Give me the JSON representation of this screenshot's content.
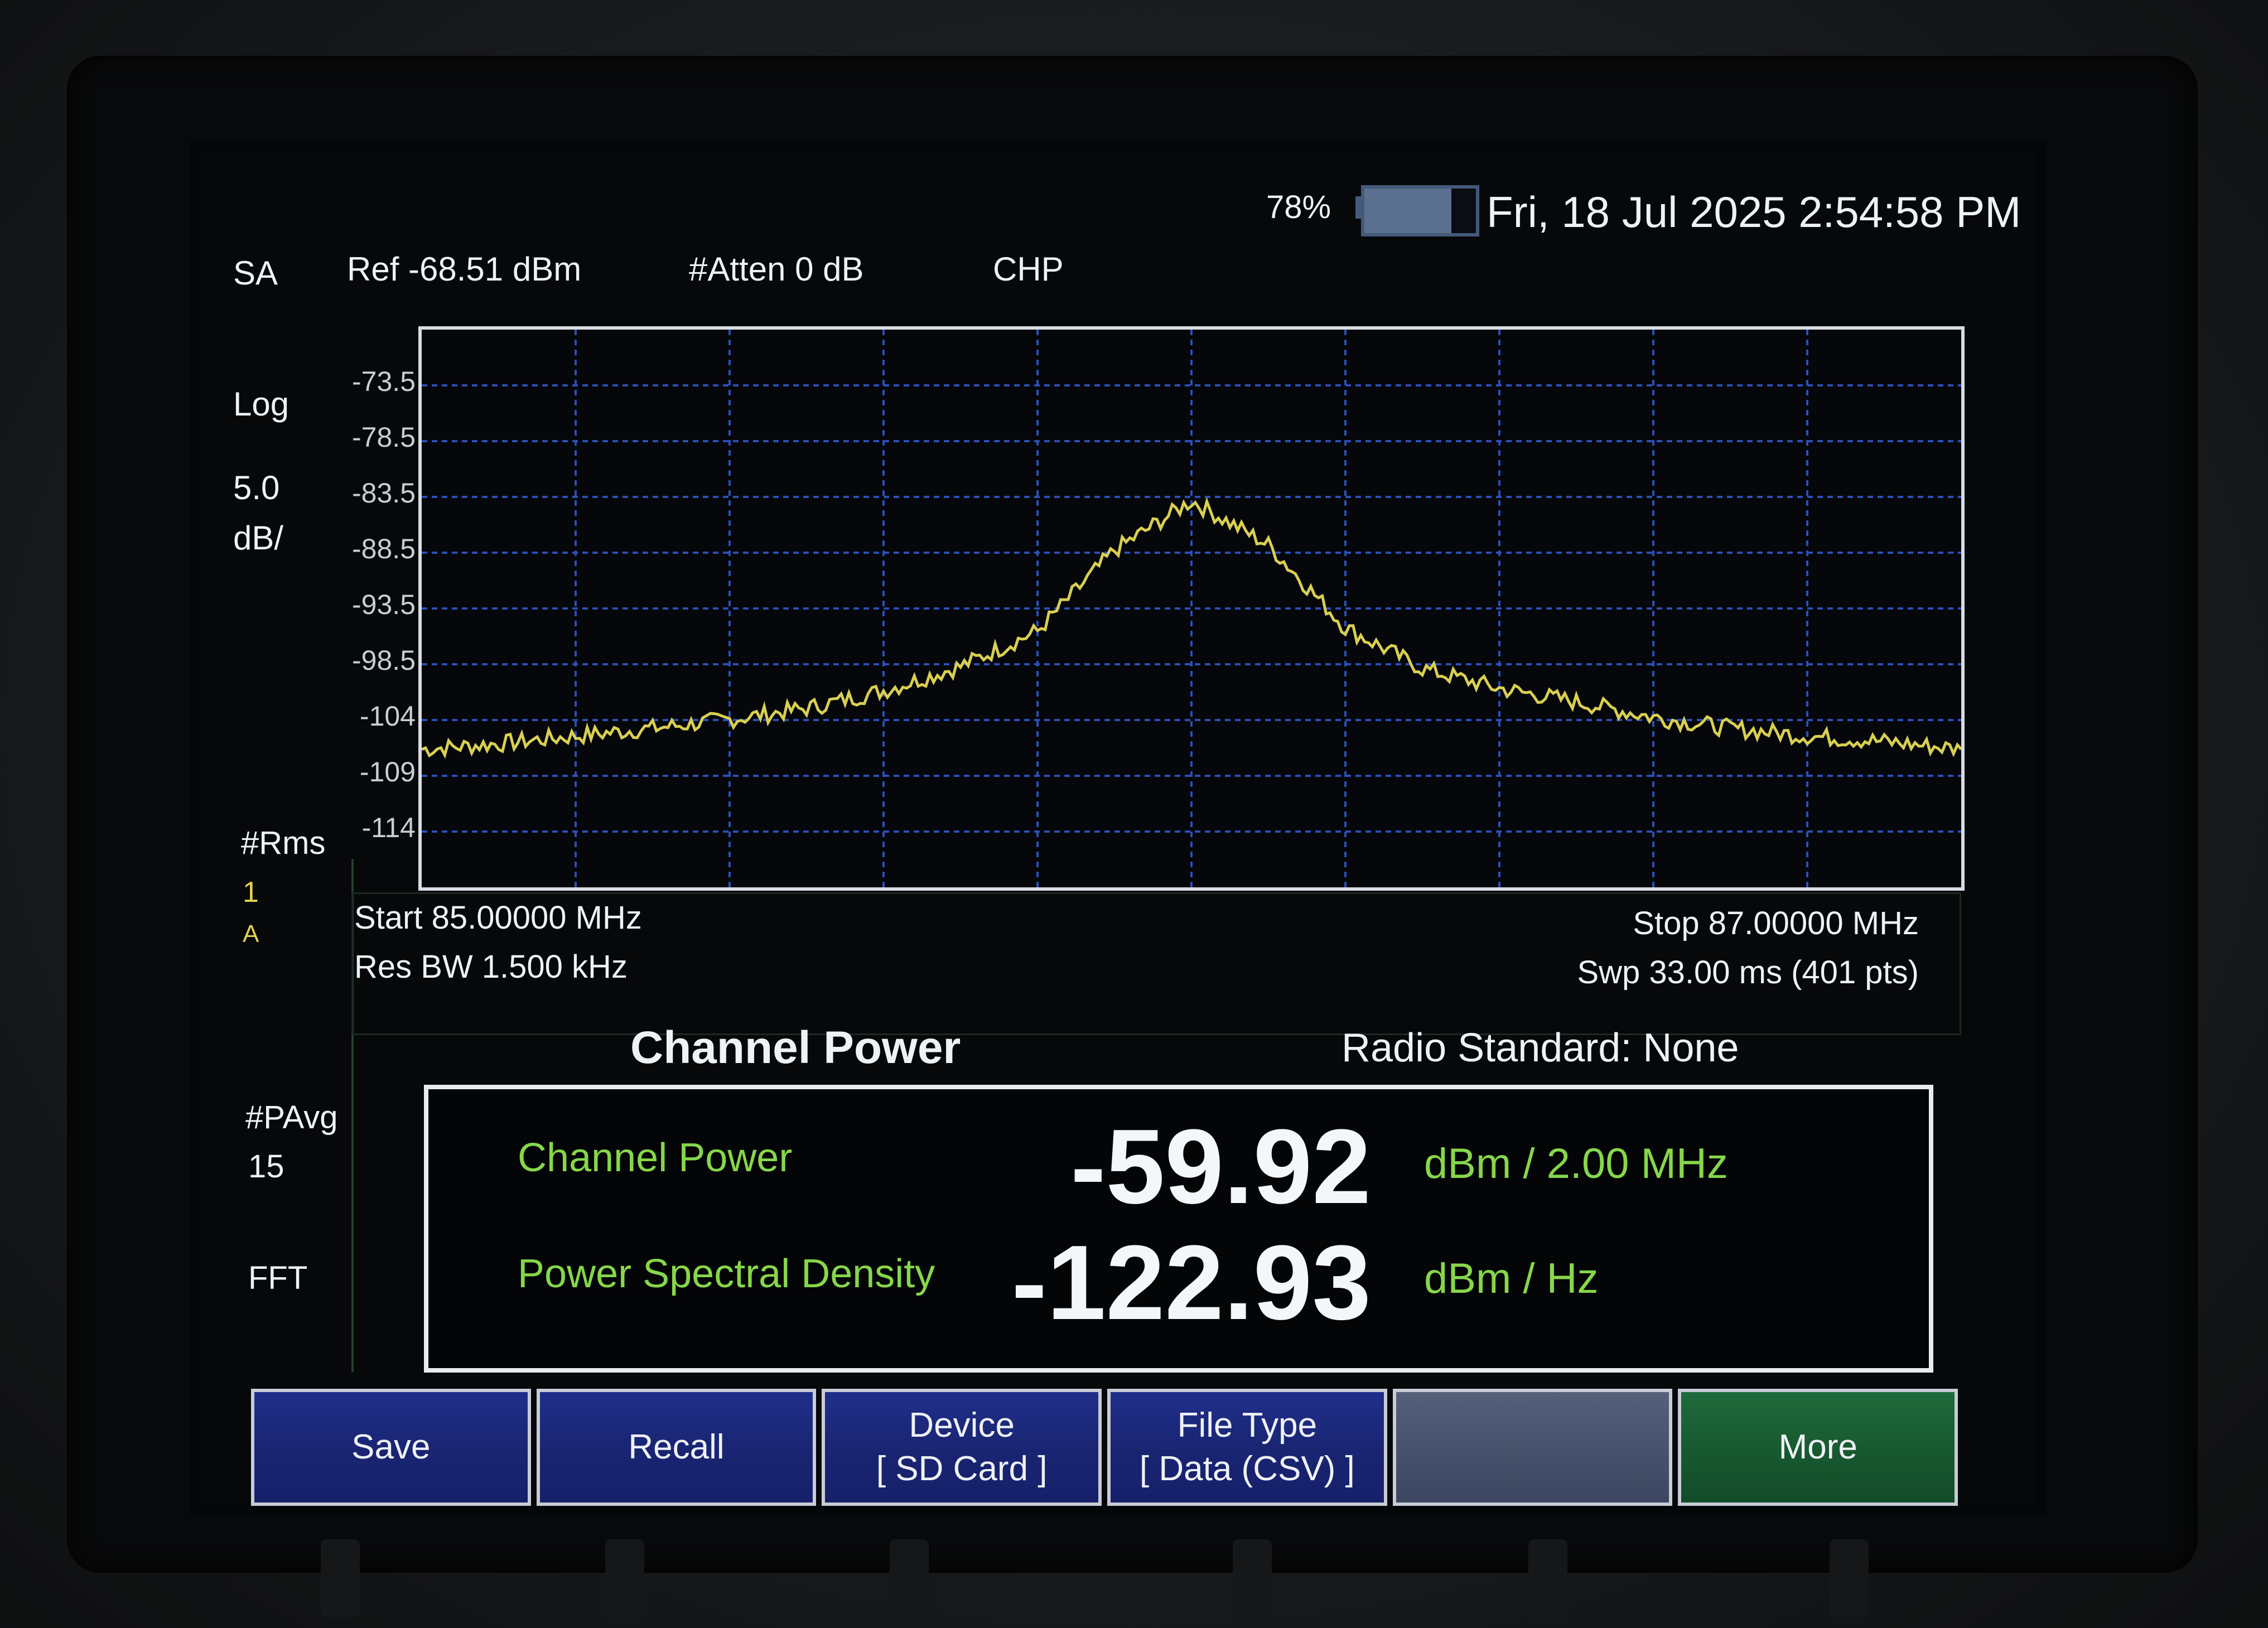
{
  "status": {
    "battery": "78%",
    "battery_level": 0.78,
    "datetime": "Fri, 18 Jul 2025 2:54:58 PM"
  },
  "header": {
    "mode": "SA",
    "ref": "Ref -68.51 dBm",
    "atten": "#Atten 0 dB",
    "measurement": "CHP"
  },
  "left_panel": {
    "scale_type": "Log",
    "scale_value": "5.0",
    "scale_unit": "dB/",
    "detector": "#Rms",
    "trace_num": "1",
    "trace_mode": "A",
    "avg": "#PAvg",
    "avg_count": "15",
    "sweep_type": "FFT"
  },
  "chart_data": {
    "type": "line",
    "ylabels": [
      "-73.5",
      "-78.5",
      "-83.5",
      "-88.5",
      "-93.5",
      "-98.5",
      "-104",
      "-109",
      "-114"
    ],
    "ylim": [
      -119,
      -68.51
    ],
    "xlim": [
      85.0,
      87.0
    ],
    "grid": true,
    "series": [
      {
        "color": "#d9cf52",
        "x": [
          85.0,
          85.1,
          85.2,
          85.3,
          85.4,
          85.5,
          85.6,
          85.7,
          85.8,
          85.9,
          86.0,
          86.1,
          86.2,
          86.3,
          86.4,
          86.5,
          86.6,
          86.7,
          86.8,
          86.9,
          87.0
        ],
        "y": [
          -106.5,
          -106.0,
          -105.3,
          -104.6,
          -103.8,
          -102.8,
          -101.2,
          -99.0,
          -95.8,
          -88.5,
          -84.0,
          -88.0,
          -95.5,
          -99.2,
          -101.0,
          -102.2,
          -103.6,
          -104.6,
          -105.3,
          -105.8,
          -106.5
        ]
      }
    ]
  },
  "freq": {
    "start": "Start 85.00000 MHz",
    "stop": "Stop 87.00000 MHz",
    "rbw": "Res BW 1.500 kHz",
    "sweep": "Swp 33.00 ms (401 pts)"
  },
  "result": {
    "title": "Channel Power",
    "radio_standard": "Radio Standard: None",
    "channel_power_label": "Channel Power",
    "channel_power_value": "-59.92",
    "channel_power_unit": "dBm / 2.00 MHz",
    "psd_label": "Power Spectral Density",
    "psd_value": "-122.93",
    "psd_unit": "dBm / Hz"
  },
  "softkeys": [
    {
      "line1": "Save",
      "line2": ""
    },
    {
      "line1": "Recall",
      "line2": ""
    },
    {
      "line1": "Device",
      "line2": "[ SD Card ]"
    },
    {
      "line1": "File Type",
      "line2": "[ Data (CSV) ]"
    },
    {
      "line1": "",
      "line2": ""
    },
    {
      "line1": "More",
      "line2": ""
    }
  ]
}
